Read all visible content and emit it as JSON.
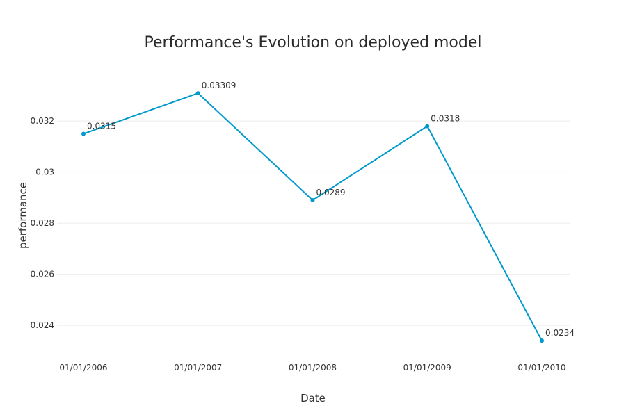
{
  "chart_data": {
    "type": "line",
    "title": "Performance's Evolution on deployed model",
    "xlabel": "Date",
    "ylabel": "performance",
    "categories": [
      "01/01/2006",
      "01/01/2007",
      "01/01/2008",
      "01/01/2009",
      "01/01/2010"
    ],
    "series": [
      {
        "values": [
          0.0315,
          0.03309,
          0.0289,
          0.0318,
          0.0234
        ],
        "labels": [
          "0.0315",
          "0.03309",
          "0.0289",
          "0.0318",
          "0.0234"
        ],
        "color": "#0099cc"
      }
    ],
    "yticks": [
      0.024,
      0.026,
      0.028,
      0.03,
      0.032
    ],
    "ytick_labels": [
      "0.024",
      "0.026",
      "0.028",
      "0.03",
      "0.032"
    ],
    "ylim": [
      0.02286,
      0.03429
    ],
    "grid": true,
    "grid_color": "#ececec"
  }
}
